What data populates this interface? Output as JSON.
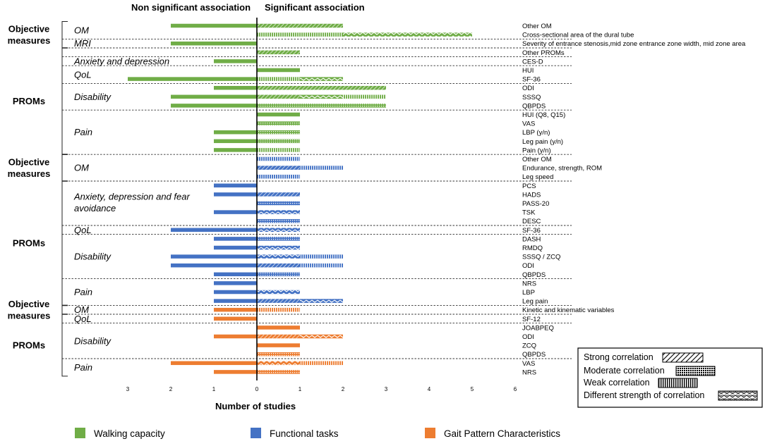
{
  "chart_data": {
    "type": "bar",
    "title": "",
    "header_left": "Non significant association",
    "header_right": "Significant association",
    "xlabel": "Number of studies",
    "xlim": [
      -3,
      6
    ],
    "xticks": [
      {
        "pos": -3,
        "label": "3"
      },
      {
        "pos": -2,
        "label": "2"
      },
      {
        "pos": -1,
        "label": "1"
      },
      {
        "pos": 0,
        "label": "0"
      },
      {
        "pos": 1,
        "label": "1"
      },
      {
        "pos": 2,
        "label": "2"
      },
      {
        "pos": 3,
        "label": "3"
      },
      {
        "pos": 4,
        "label": "4"
      },
      {
        "pos": 5,
        "label": "5"
      },
      {
        "pos": 6,
        "label": "6"
      }
    ],
    "colors": {
      "walking": "#70ad47",
      "functional": "#4472c4",
      "gait": "#ed7d31"
    },
    "strength_legend": [
      {
        "label": "Strong correlation",
        "pattern": "diag"
      },
      {
        "label": "Moderate correlation",
        "pattern": "dots"
      },
      {
        "label": "Weak correlation",
        "pattern": "vert"
      },
      {
        "label": "Different strength of correlation",
        "pattern": "wave"
      }
    ],
    "category_legend": [
      {
        "label": "Walking capacity",
        "color": "#70ad47"
      },
      {
        "label": "Functional tasks",
        "color": "#4472c4"
      },
      {
        "label": "Gait Pattern Characteristics",
        "color": "#ed7d31"
      }
    ],
    "rows": [
      {
        "label": "Other OM",
        "group": "walking",
        "non_sig": 2,
        "sig": [
          {
            "v": 2,
            "p": "diag"
          }
        ]
      },
      {
        "label": "Cross-sectional  area of the dural tube",
        "group": "walking",
        "non_sig": 0,
        "sig": [
          {
            "v": 2,
            "p": "vert"
          },
          {
            "v": 3,
            "p": "wave"
          }
        ]
      },
      {
        "label": "Severity of entrance stenosis,mid  zone entrance zone width, mid zone area",
        "group": "walking",
        "non_sig": 2,
        "sig": []
      },
      {
        "label": "Other PROMs",
        "group": "walking",
        "non_sig": 0,
        "sig": [
          {
            "v": 1,
            "p": "diag"
          }
        ]
      },
      {
        "label": "CES-D",
        "group": "walking",
        "non_sig": 1,
        "sig": []
      },
      {
        "label": "HUI",
        "group": "walking",
        "non_sig": 0,
        "sig": [
          {
            "v": 1,
            "p": "solid"
          }
        ]
      },
      {
        "label": "SF-36",
        "group": "walking",
        "non_sig": 3,
        "sig": [
          {
            "v": 1,
            "p": "vert"
          },
          {
            "v": 1,
            "p": "wave"
          }
        ]
      },
      {
        "label": "ODI",
        "group": "walking",
        "non_sig": 1,
        "sig": [
          {
            "v": 3,
            "p": "diag"
          }
        ]
      },
      {
        "label": "SSSQ",
        "group": "walking",
        "non_sig": 2,
        "sig": [
          {
            "v": 1,
            "p": "diag"
          },
          {
            "v": 1,
            "p": "wave"
          },
          {
            "v": 1,
            "p": "vert"
          }
        ]
      },
      {
        "label": "QBPDS",
        "group": "walking",
        "non_sig": 2,
        "sig": [
          {
            "v": 3,
            "p": "dots"
          }
        ]
      },
      {
        "label": "HUI (Q8,  Q15)",
        "group": "walking",
        "non_sig": 0,
        "sig": [
          {
            "v": 1,
            "p": "solid"
          }
        ]
      },
      {
        "label": "VAS",
        "group": "walking",
        "non_sig": 0,
        "sig": [
          {
            "v": 1,
            "p": "dots"
          }
        ]
      },
      {
        "label": "LBP (y/n)",
        "group": "walking",
        "non_sig": 1,
        "sig": [
          {
            "v": 1,
            "p": "dots"
          }
        ]
      },
      {
        "label": "Leg pain  (y/n)",
        "group": "walking",
        "non_sig": 1,
        "sig": [
          {
            "v": 1,
            "p": "dots"
          }
        ]
      },
      {
        "label": "Pain (y/n)",
        "group": "walking",
        "non_sig": 1,
        "sig": [
          {
            "v": 1,
            "p": "vert"
          }
        ]
      },
      {
        "label": "Other OM",
        "group": "functional",
        "non_sig": 0,
        "sig": [
          {
            "v": 1,
            "p": "vert"
          }
        ]
      },
      {
        "label": "Endurance,  strength, ROM",
        "group": "functional",
        "non_sig": 0,
        "sig": [
          {
            "v": 1,
            "p": "diag"
          },
          {
            "v": 1,
            "p": "vert"
          }
        ]
      },
      {
        "label": "Leg speed",
        "group": "functional",
        "non_sig": 0,
        "sig": [
          {
            "v": 1,
            "p": "vert"
          }
        ]
      },
      {
        "label": "PCS",
        "group": "functional",
        "non_sig": 1,
        "sig": []
      },
      {
        "label": "HADS",
        "group": "functional",
        "non_sig": 1,
        "sig": [
          {
            "v": 1,
            "p": "diag"
          }
        ]
      },
      {
        "label": "PASS-20",
        "group": "functional",
        "non_sig": 0,
        "sig": [
          {
            "v": 1,
            "p": "dots"
          }
        ]
      },
      {
        "label": "TSK",
        "group": "functional",
        "non_sig": 1,
        "sig": [
          {
            "v": 1,
            "p": "wave"
          }
        ]
      },
      {
        "label": "DESC",
        "group": "functional",
        "non_sig": 0,
        "sig": [
          {
            "v": 1,
            "p": "dots"
          }
        ]
      },
      {
        "label": "SF-36",
        "group": "functional",
        "non_sig": 2,
        "sig": [
          {
            "v": 1,
            "p": "wave"
          }
        ]
      },
      {
        "label": "DASH",
        "group": "functional",
        "non_sig": 1,
        "sig": [
          {
            "v": 1,
            "p": "dots"
          }
        ]
      },
      {
        "label": "RMDQ",
        "group": "functional",
        "non_sig": 1,
        "sig": [
          {
            "v": 1,
            "p": "wave"
          }
        ]
      },
      {
        "label": "SSSQ  / ZCQ",
        "group": "functional",
        "non_sig": 2,
        "sig": [
          {
            "v": 1,
            "p": "wave"
          },
          {
            "v": 1,
            "p": "vert"
          }
        ]
      },
      {
        "label": "ODI",
        "group": "functional",
        "non_sig": 2,
        "sig": [
          {
            "v": 1,
            "p": "diag"
          },
          {
            "v": 1,
            "p": "vert"
          }
        ]
      },
      {
        "label": "QBPDS",
        "group": "functional",
        "non_sig": 1,
        "sig": [
          {
            "v": 1,
            "p": "dots"
          }
        ]
      },
      {
        "label": "NRS",
        "group": "functional",
        "non_sig": 1,
        "sig": []
      },
      {
        "label": "LBP",
        "group": "functional",
        "non_sig": 1,
        "sig": [
          {
            "v": 1,
            "p": "wave"
          }
        ]
      },
      {
        "label": "Leg pain",
        "group": "functional",
        "non_sig": 1,
        "sig": [
          {
            "v": 1,
            "p": "diag"
          },
          {
            "v": 1,
            "p": "wave"
          }
        ]
      },
      {
        "label": "Kinetic and kinematic variables",
        "group": "gait",
        "non_sig": 1,
        "sig": [
          {
            "v": 1,
            "p": "vert"
          }
        ]
      },
      {
        "label": "SF-12",
        "group": "gait",
        "non_sig": 1,
        "sig": []
      },
      {
        "label": "JOABPEQ",
        "group": "gait",
        "non_sig": 0,
        "sig": [
          {
            "v": 1,
            "p": "solid"
          }
        ]
      },
      {
        "label": "ODI",
        "group": "gait",
        "non_sig": 1,
        "sig": [
          {
            "v": 1,
            "p": "diag"
          },
          {
            "v": 1,
            "p": "wave"
          }
        ]
      },
      {
        "label": "ZCQ",
        "group": "gait",
        "non_sig": 0,
        "sig": [
          {
            "v": 1,
            "p": "solid"
          }
        ]
      },
      {
        "label": "QBPDS",
        "group": "gait",
        "non_sig": 0,
        "sig": [
          {
            "v": 1,
            "p": "dots"
          }
        ]
      },
      {
        "label": "VAS",
        "group": "gait",
        "non_sig": 2,
        "sig": [
          {
            "v": 1,
            "p": "wave"
          },
          {
            "v": 1,
            "p": "vert"
          }
        ]
      },
      {
        "label": "NRS",
        "group": "gait",
        "non_sig": 1,
        "sig": [
          {
            "v": 1,
            "p": "dots"
          }
        ]
      }
    ],
    "sections": [
      {
        "label": "Objective\nmeasures",
        "first": 0,
        "last": 2
      },
      {
        "label": "PROMs",
        "first": 3,
        "last": 14
      },
      {
        "label": "Objective\nmeasures",
        "first": 15,
        "last": 17
      },
      {
        "label": "PROMs",
        "first": 18,
        "last": 31
      },
      {
        "label": "Objective\nmeasures",
        "first": 32,
        "last": 32
      },
      {
        "label": "PROMs",
        "first": 33,
        "last": 39
      }
    ],
    "subgroups": [
      {
        "label": "OM",
        "first": 0,
        "last": 1
      },
      {
        "label": "MRI",
        "first": 2,
        "last": 2
      },
      {
        "label": "Anxiety and depression",
        "first": 4,
        "last": 4
      },
      {
        "label": "QoL",
        "first": 5,
        "last": 6
      },
      {
        "label": "Disability",
        "first": 7,
        "last": 9
      },
      {
        "label": "Pain",
        "first": 10,
        "last": 14
      },
      {
        "label": "OM",
        "first": 15,
        "last": 17
      },
      {
        "label": "Anxiety, depression and fear\navoidance",
        "first": 18,
        "last": 22
      },
      {
        "label": "QoL",
        "first": 23,
        "last": 23
      },
      {
        "label": "Disability",
        "first": 24,
        "last": 28
      },
      {
        "label": "Pain",
        "first": 29,
        "last": 31
      },
      {
        "label": "OM",
        "first": 32,
        "last": 32
      },
      {
        "label": "QoL",
        "first": 33,
        "last": 33
      },
      {
        "label": "Disability",
        "first": 34,
        "last": 37
      },
      {
        "label": "Pain",
        "first": 38,
        "last": 39
      }
    ],
    "separators_after": [
      1,
      2,
      3,
      4,
      6,
      9,
      14,
      17,
      22,
      23,
      28,
      31,
      32,
      33,
      37
    ]
  }
}
